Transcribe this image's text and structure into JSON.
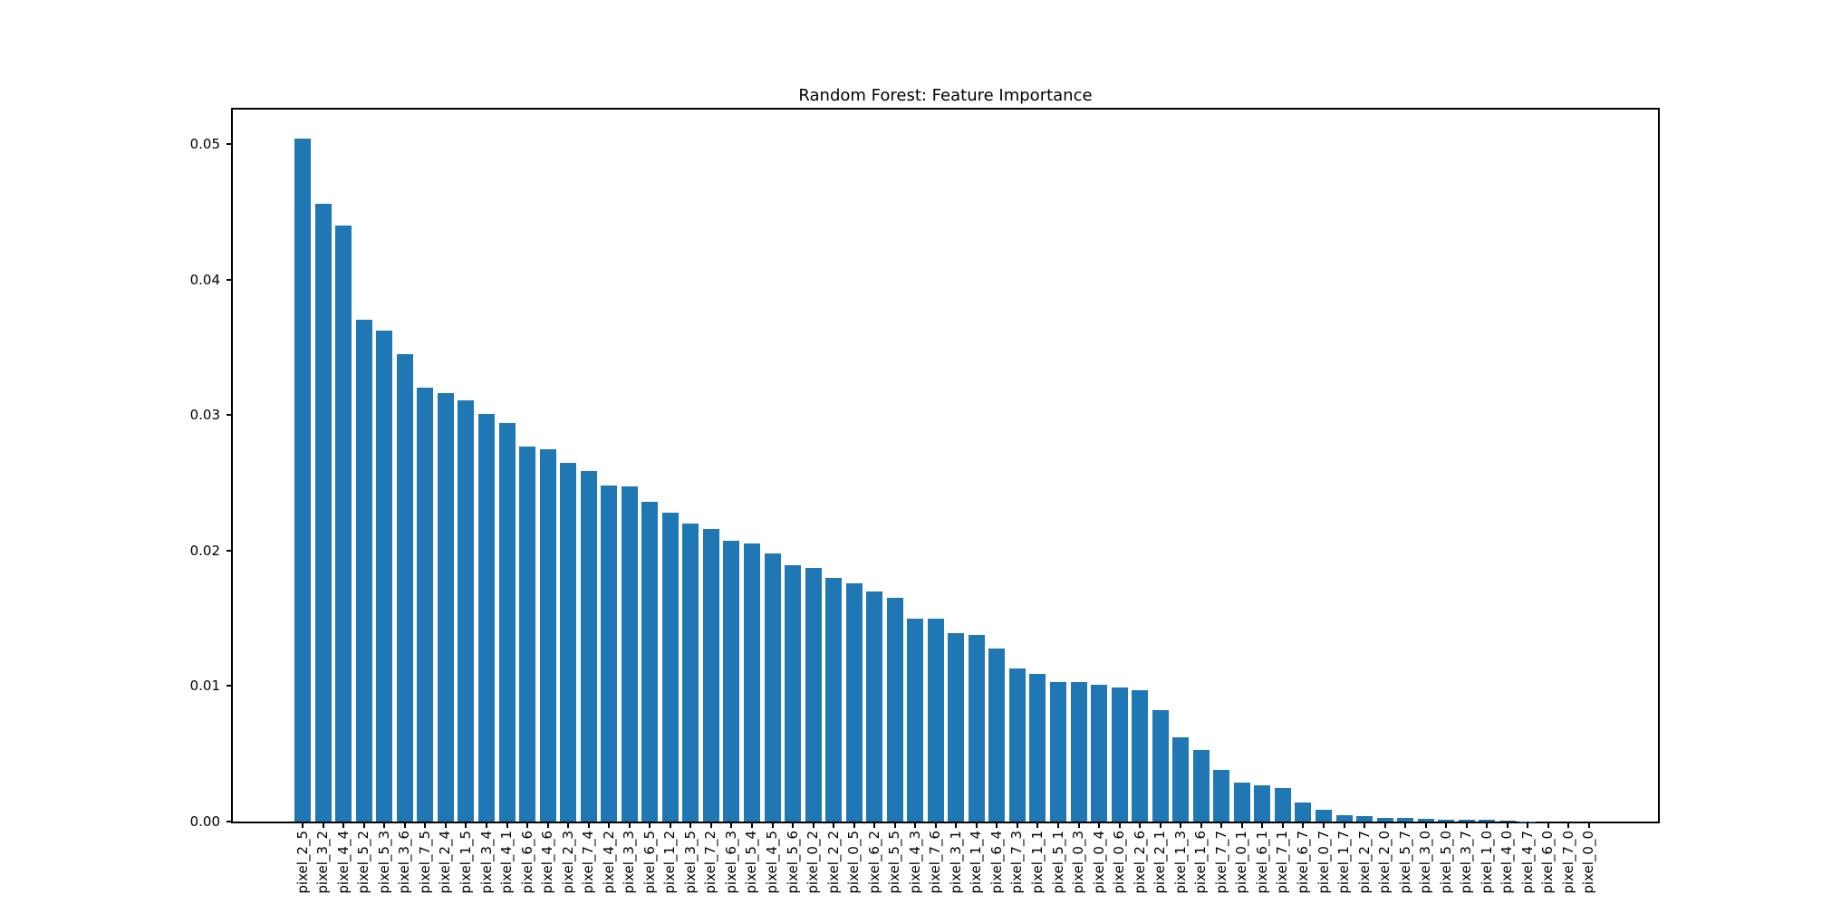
{
  "figure": {
    "background": "#ffffff"
  },
  "chart_data": {
    "type": "bar",
    "title": "Random Forest: Feature Importance",
    "xlabel": "",
    "ylabel": "",
    "grid": false,
    "legend": null,
    "bar_color": "#1f77b4",
    "axis_color": "#000000",
    "text_color": "#000000",
    "ylim": [
      0,
      0.05254
    ],
    "ytick_labels": [
      "0.00",
      "0.01",
      "0.02",
      "0.03",
      "0.04",
      "0.05"
    ],
    "ytick_values": [
      0.0,
      0.01,
      0.02,
      0.03,
      0.04,
      0.05
    ],
    "categories": [
      "pixel_2_5",
      "pixel_3_2",
      "pixel_4_4",
      "pixel_5_2",
      "pixel_5_3",
      "pixel_3_6",
      "pixel_7_5",
      "pixel_2_4",
      "pixel_1_5",
      "pixel_3_4",
      "pixel_4_1",
      "pixel_6_6",
      "pixel_4_6",
      "pixel_2_3",
      "pixel_7_4",
      "pixel_4_2",
      "pixel_3_3",
      "pixel_6_5",
      "pixel_1_2",
      "pixel_3_5",
      "pixel_7_2",
      "pixel_6_3",
      "pixel_5_4",
      "pixel_4_5",
      "pixel_5_6",
      "pixel_0_2",
      "pixel_2_2",
      "pixel_0_5",
      "pixel_6_2",
      "pixel_5_5",
      "pixel_4_3",
      "pixel_7_6",
      "pixel_3_1",
      "pixel_1_4",
      "pixel_6_4",
      "pixel_7_3",
      "pixel_1_1",
      "pixel_5_1",
      "pixel_0_3",
      "pixel_0_4",
      "pixel_0_6",
      "pixel_2_6",
      "pixel_2_1",
      "pixel_1_3",
      "pixel_1_6",
      "pixel_7_7",
      "pixel_0_1",
      "pixel_6_1",
      "pixel_7_1",
      "pixel_6_7",
      "pixel_0_7",
      "pixel_1_7",
      "pixel_2_7",
      "pixel_2_0",
      "pixel_5_7",
      "pixel_3_0",
      "pixel_5_0",
      "pixel_3_7",
      "pixel_1_0",
      "pixel_4_0",
      "pixel_4_7",
      "pixel_6_0",
      "pixel_7_0",
      "pixel_0_0"
    ],
    "values": [
      0.0504,
      0.0456,
      0.044,
      0.037,
      0.0362,
      0.0345,
      0.032,
      0.0316,
      0.0311,
      0.0301,
      0.0294,
      0.0277,
      0.0275,
      0.0265,
      0.0259,
      0.0248,
      0.0247,
      0.0236,
      0.0228,
      0.022,
      0.0216,
      0.0207,
      0.0205,
      0.0198,
      0.0189,
      0.0187,
      0.018,
      0.0176,
      0.017,
      0.0165,
      0.015,
      0.015,
      0.0139,
      0.0138,
      0.0128,
      0.0113,
      0.0109,
      0.0103,
      0.0103,
      0.0101,
      0.0099,
      0.0097,
      0.0082,
      0.0062,
      0.0053,
      0.0038,
      0.0029,
      0.0027,
      0.0025,
      0.0014,
      0.0009,
      0.0005,
      0.0004,
      0.0003,
      0.00025,
      0.0002,
      0.00015,
      0.00014,
      0.00013,
      5e-05,
      2e-05,
      0.0,
      0.0,
      0.0
    ]
  }
}
